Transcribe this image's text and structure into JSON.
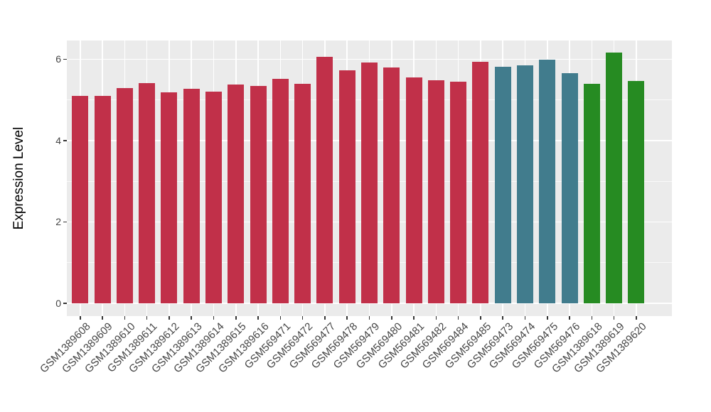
{
  "colors": {
    "background": "#FFFFFF",
    "panel_background": "#EBEBEB",
    "gridline": "#FFFFFF",
    "axis_text": "#454545",
    "axis_tick": "#333333",
    "group_red": "#C13049",
    "group_teal": "#417C8D",
    "group_green": "#268B22"
  },
  "chart_data": {
    "type": "bar",
    "title": "",
    "xlabel": "",
    "ylabel": "Expression Level",
    "legend_position": "none",
    "grid": "on",
    "ylim": [
      -0.315,
      6.46
    ],
    "yticks": [
      0,
      2,
      4,
      6
    ],
    "yticks_minor": [
      1,
      3,
      5
    ],
    "bars": [
      {
        "label": "GSM1389608",
        "value": 5.1,
        "color": "#C13049"
      },
      {
        "label": "GSM1389609",
        "value": 5.1,
        "color": "#C13049"
      },
      {
        "label": "GSM1389610",
        "value": 5.29,
        "color": "#C13049"
      },
      {
        "label": "GSM1389611",
        "value": 5.42,
        "color": "#C13049"
      },
      {
        "label": "GSM1389612",
        "value": 5.19,
        "color": "#C13049"
      },
      {
        "label": "GSM1389613",
        "value": 5.27,
        "color": "#C13049"
      },
      {
        "label": "GSM1389614",
        "value": 5.21,
        "color": "#C13049"
      },
      {
        "label": "GSM1389615",
        "value": 5.37,
        "color": "#C13049"
      },
      {
        "label": "GSM1389616",
        "value": 5.34,
        "color": "#C13049"
      },
      {
        "label": "GSM569471",
        "value": 5.51,
        "color": "#C13049"
      },
      {
        "label": "GSM569472",
        "value": 5.39,
        "color": "#C13049"
      },
      {
        "label": "GSM569477",
        "value": 6.06,
        "color": "#C13049"
      },
      {
        "label": "GSM569478",
        "value": 5.72,
        "color": "#C13049"
      },
      {
        "label": "GSM569479",
        "value": 5.91,
        "color": "#C13049"
      },
      {
        "label": "GSM569480",
        "value": 5.79,
        "color": "#C13049"
      },
      {
        "label": "GSM569481",
        "value": 5.56,
        "color": "#C13049"
      },
      {
        "label": "GSM569482",
        "value": 5.49,
        "color": "#C13049"
      },
      {
        "label": "GSM569484",
        "value": 5.45,
        "color": "#C13049"
      },
      {
        "label": "GSM569485",
        "value": 5.93,
        "color": "#C13049"
      },
      {
        "label": "GSM569473",
        "value": 5.82,
        "color": "#417C8D"
      },
      {
        "label": "GSM569474",
        "value": 5.85,
        "color": "#417C8D"
      },
      {
        "label": "GSM569475",
        "value": 5.98,
        "color": "#417C8D"
      },
      {
        "label": "GSM569476",
        "value": 5.65,
        "color": "#417C8D"
      },
      {
        "label": "GSM1389618",
        "value": 5.4,
        "color": "#268B22"
      },
      {
        "label": "GSM1389619",
        "value": 6.16,
        "color": "#268B22"
      },
      {
        "label": "GSM1389620",
        "value": 5.46,
        "color": "#268B22"
      }
    ]
  }
}
